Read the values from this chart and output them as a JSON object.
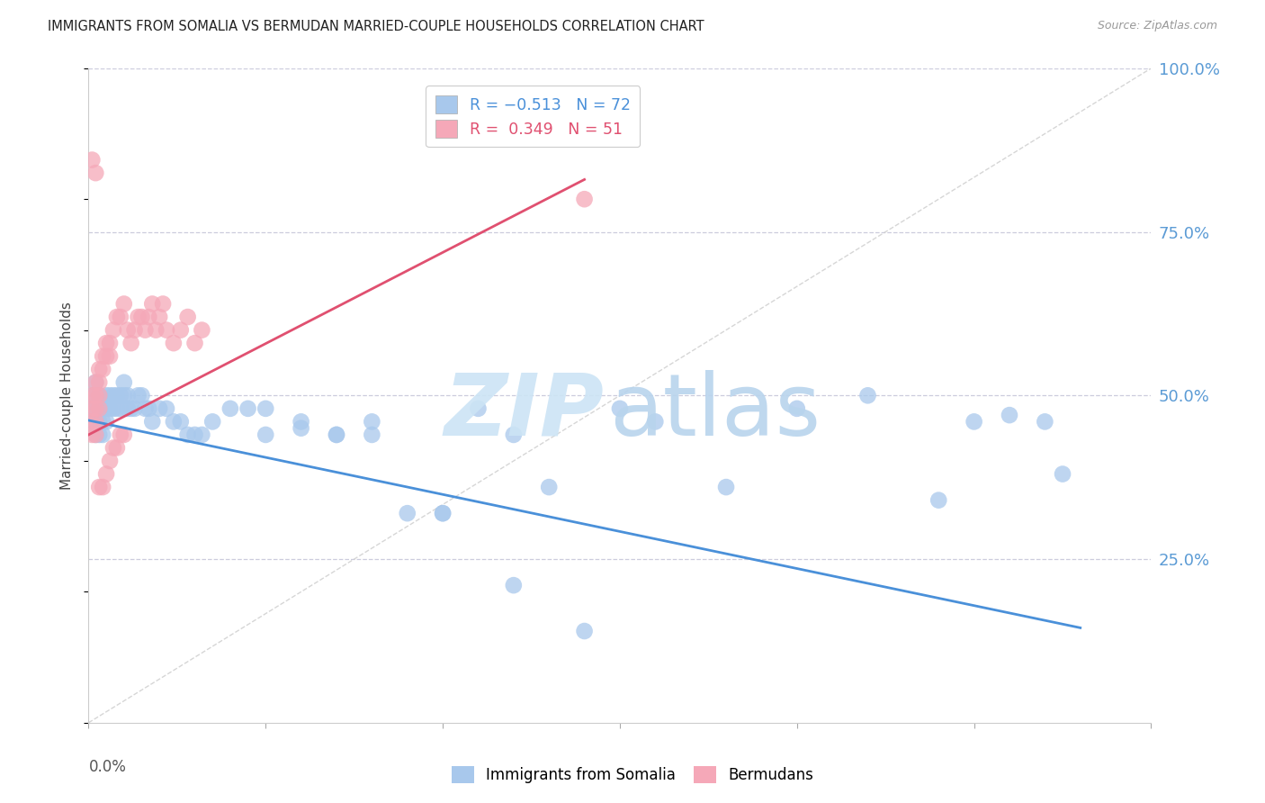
{
  "title": "IMMIGRANTS FROM SOMALIA VS BERMUDAN MARRIED-COUPLE HOUSEHOLDS CORRELATION CHART",
  "source": "Source: ZipAtlas.com",
  "ylabel": "Married-couple Households",
  "xmin": 0.0,
  "xmax": 0.3,
  "ymin": 0.0,
  "ymax": 1.0,
  "somalia_color_fill": "#a8c8ec",
  "bermuda_color_fill": "#f5a8b8",
  "trendline_somalia_color": "#4a90d9",
  "trendline_bermuda_color": "#e05070",
  "diagonal_color": "#cccccc",
  "background_color": "#ffffff",
  "grid_color": "#ccccdd",
  "axis_label_color": "#5b9bd5",
  "somalia_x": [
    0.001,
    0.001,
    0.001,
    0.002,
    0.002,
    0.002,
    0.002,
    0.003,
    0.003,
    0.003,
    0.003,
    0.004,
    0.004,
    0.004,
    0.005,
    0.005,
    0.005,
    0.006,
    0.006,
    0.007,
    0.007,
    0.008,
    0.008,
    0.009,
    0.009,
    0.01,
    0.01,
    0.011,
    0.011,
    0.012,
    0.013,
    0.014,
    0.015,
    0.016,
    0.017,
    0.018,
    0.02,
    0.022,
    0.024,
    0.026,
    0.028,
    0.03,
    0.032,
    0.035,
    0.04,
    0.045,
    0.05,
    0.06,
    0.07,
    0.08,
    0.09,
    0.1,
    0.11,
    0.12,
    0.13,
    0.15,
    0.16,
    0.18,
    0.2,
    0.22,
    0.24,
    0.25,
    0.26,
    0.27,
    0.275,
    0.05,
    0.06,
    0.07,
    0.08,
    0.1,
    0.12,
    0.14
  ],
  "somalia_y": [
    0.5,
    0.48,
    0.46,
    0.52,
    0.48,
    0.46,
    0.44,
    0.5,
    0.48,
    0.46,
    0.44,
    0.48,
    0.46,
    0.44,
    0.5,
    0.48,
    0.46,
    0.5,
    0.48,
    0.5,
    0.48,
    0.5,
    0.48,
    0.5,
    0.48,
    0.52,
    0.5,
    0.5,
    0.48,
    0.48,
    0.48,
    0.5,
    0.5,
    0.48,
    0.48,
    0.46,
    0.48,
    0.48,
    0.46,
    0.46,
    0.44,
    0.44,
    0.44,
    0.46,
    0.48,
    0.48,
    0.48,
    0.46,
    0.44,
    0.44,
    0.32,
    0.32,
    0.48,
    0.44,
    0.36,
    0.48,
    0.46,
    0.36,
    0.48,
    0.5,
    0.34,
    0.46,
    0.47,
    0.46,
    0.38,
    0.44,
    0.45,
    0.44,
    0.46,
    0.32,
    0.21,
    0.14
  ],
  "bermuda_x": [
    0.001,
    0.001,
    0.001,
    0.001,
    0.002,
    0.002,
    0.002,
    0.002,
    0.002,
    0.003,
    0.003,
    0.003,
    0.003,
    0.003,
    0.004,
    0.004,
    0.004,
    0.005,
    0.005,
    0.005,
    0.006,
    0.006,
    0.006,
    0.007,
    0.007,
    0.008,
    0.008,
    0.009,
    0.009,
    0.01,
    0.01,
    0.011,
    0.012,
    0.013,
    0.014,
    0.015,
    0.016,
    0.017,
    0.018,
    0.019,
    0.02,
    0.021,
    0.022,
    0.024,
    0.026,
    0.028,
    0.03,
    0.032,
    0.001,
    0.002,
    0.14
  ],
  "bermuda_y": [
    0.5,
    0.48,
    0.46,
    0.44,
    0.52,
    0.5,
    0.48,
    0.46,
    0.44,
    0.54,
    0.52,
    0.5,
    0.48,
    0.36,
    0.56,
    0.54,
    0.36,
    0.58,
    0.56,
    0.38,
    0.58,
    0.56,
    0.4,
    0.6,
    0.42,
    0.62,
    0.42,
    0.62,
    0.44,
    0.64,
    0.44,
    0.6,
    0.58,
    0.6,
    0.62,
    0.62,
    0.6,
    0.62,
    0.64,
    0.6,
    0.62,
    0.64,
    0.6,
    0.58,
    0.6,
    0.62,
    0.58,
    0.6,
    0.86,
    0.84,
    0.8
  ],
  "trend_somalia_x0": 0.0,
  "trend_somalia_y0": 0.462,
  "trend_somalia_x1": 0.28,
  "trend_somalia_y1": 0.145,
  "trend_bermuda_x0": 0.0,
  "trend_bermuda_y0": 0.44,
  "trend_bermuda_x1": 0.14,
  "trend_bermuda_y1": 0.83
}
